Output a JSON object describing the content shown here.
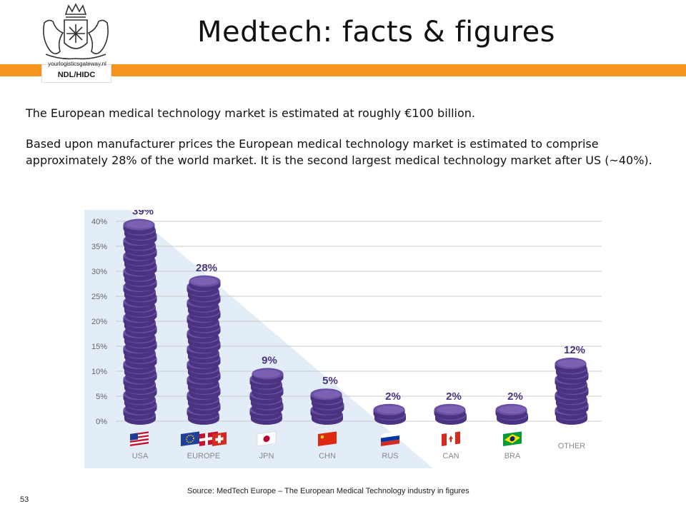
{
  "slide": {
    "title": "Medtech: facts & figures",
    "logo_text": "NDL/HIDC",
    "logo_url": "yourlogisticsgateway.nl",
    "paragraph1": "The European medical technology market is estimated at roughly €100 billion.",
    "paragraph2": "Based upon manufacturer prices the European medical technology market is estimated to comprise approximately 28% of the world market. It is the second largest medical technology market after US (~40%).",
    "source": "Source: MedTech Europe – The European Medical Technology industry in figures",
    "page_number": "53"
  },
  "colors": {
    "accent": "#f7941d",
    "coin": "#6a4fa3",
    "coin_dark": "#4a3380",
    "coin_light": "#8b74c4",
    "shade": "#dce9f5"
  },
  "chart_data": {
    "type": "bar",
    "categories": [
      "USA",
      "EUROPE",
      "JPN",
      "CHN",
      "RUS",
      "CAN",
      "BRA",
      "OTHER"
    ],
    "values": [
      39,
      28,
      9,
      5,
      2,
      2,
      2,
      12
    ],
    "data_labels": [
      "39%",
      "28%",
      "9%",
      "5%",
      "2%",
      "2%",
      "2%",
      "12%"
    ],
    "ylim": [
      0,
      40
    ],
    "yticks": [
      "0%",
      "5%",
      "10%",
      "15%",
      "20%",
      "25%",
      "30%",
      "35%",
      "40%"
    ],
    "grid": true,
    "title": "",
    "xlabel": "",
    "ylabel": ""
  }
}
